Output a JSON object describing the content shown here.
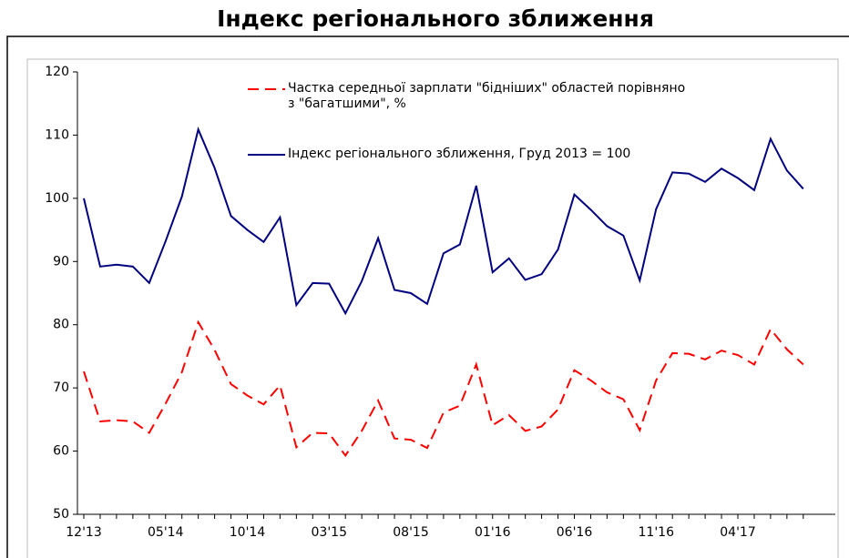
{
  "chart_data": {
    "type": "line",
    "title": "Індекс регіонального зближення",
    "categories": [
      "12'13",
      null,
      null,
      null,
      null,
      "05'14",
      null,
      null,
      null,
      null,
      "10'14",
      null,
      null,
      null,
      null,
      "03'15",
      null,
      null,
      null,
      null,
      "08'15",
      null,
      null,
      null,
      null,
      "01'16",
      null,
      null,
      null,
      null,
      "06'16",
      null,
      null,
      null,
      null,
      "11'16",
      null,
      null,
      null,
      null,
      "04'17",
      null,
      null,
      null,
      null
    ],
    "series": [
      {
        "name": "Частка середньої зарплати \"бідніших\" областей порівняно з \"багатшими\", %",
        "color": "#ff0000",
        "dashed": true,
        "values": [
          72.6,
          64.7,
          64.9,
          64.7,
          62.9,
          67.5,
          72.5,
          80.4,
          76,
          70.6,
          68.8,
          67.4,
          70.4,
          60.6,
          62.9,
          62.8,
          59.3,
          63.2,
          68,
          62,
          61.8,
          60.5,
          66.1,
          67.2,
          73.7,
          64.1,
          65.7,
          63.2,
          63.9,
          66.6,
          72.8,
          71.2,
          69.3,
          68.2,
          63.3,
          71.2,
          75.5,
          75.4,
          74.5,
          75.9,
          75.2,
          73.7,
          79.3,
          76.1,
          73.7
        ]
      },
      {
        "name": "Індекс регіонального зближення, Груд 2013 = 100",
        "color": "#000080",
        "dashed": false,
        "values": [
          100,
          89.2,
          89.5,
          89.2,
          86.6,
          93.2,
          100.3,
          110.9,
          104.8,
          97.2,
          95,
          93.1,
          97,
          83.1,
          86.6,
          86.5,
          81.8,
          86.9,
          93.7,
          85.5,
          85,
          83.3,
          91.3,
          92.7,
          102,
          88.3,
          90.5,
          87.1,
          88,
          91.9,
          100.6,
          98.2,
          95.6,
          94.1,
          87,
          98.3,
          104.1,
          103.9,
          102.6,
          104.7,
          103.2,
          101.3,
          109.4,
          104.4,
          101.5
        ]
      }
    ],
    "ylim": [
      50,
      120
    ],
    "yticks": [
      50,
      60,
      70,
      80,
      90,
      100,
      110,
      120
    ],
    "grid": false
  }
}
